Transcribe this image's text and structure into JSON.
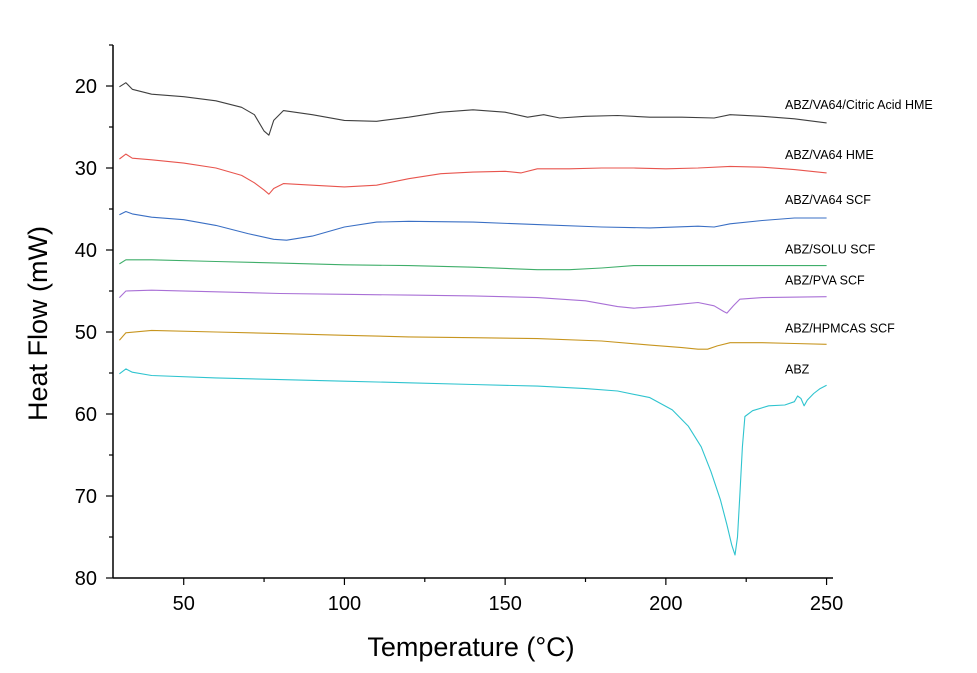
{
  "chart_data": {
    "type": "line",
    "title": "",
    "xlabel": "Temperature (°C)",
    "ylabel": "Heat Flow (mW)",
    "xlim": [
      28,
      252
    ],
    "ylim": [
      80,
      15
    ],
    "y_inverted": true,
    "x_ticks": [
      50,
      100,
      150,
      200,
      250
    ],
    "y_ticks": [
      20,
      30,
      40,
      50,
      60,
      70,
      80
    ],
    "grid": false,
    "legend": "inline labels at right of each curve",
    "series": [
      {
        "name": "ABZ/VA64/Citric Acid HME",
        "color": "#3f3f3f",
        "points": [
          [
            30,
            20.1
          ],
          [
            32,
            19.6
          ],
          [
            34,
            20.4
          ],
          [
            40,
            21.0
          ],
          [
            50,
            21.3
          ],
          [
            60,
            21.8
          ],
          [
            68,
            22.6
          ],
          [
            72,
            23.5
          ],
          [
            75,
            25.5
          ],
          [
            76.5,
            26.0
          ],
          [
            78,
            24.2
          ],
          [
            81,
            23.0
          ],
          [
            90,
            23.5
          ],
          [
            100,
            24.2
          ],
          [
            110,
            24.3
          ],
          [
            120,
            23.8
          ],
          [
            130,
            23.2
          ],
          [
            140,
            22.9
          ],
          [
            150,
            23.2
          ],
          [
            157,
            23.8
          ],
          [
            162,
            23.5
          ],
          [
            167,
            23.9
          ],
          [
            175,
            23.7
          ],
          [
            185,
            23.6
          ],
          [
            195,
            23.8
          ],
          [
            205,
            23.8
          ],
          [
            215,
            23.9
          ],
          [
            220,
            23.5
          ],
          [
            230,
            23.7
          ],
          [
            240,
            24.0
          ],
          [
            250,
            24.5
          ]
        ]
      },
      {
        "name": "ABZ/VA64 HME",
        "color": "#e8554e",
        "points": [
          [
            30,
            28.9
          ],
          [
            32,
            28.3
          ],
          [
            34,
            28.8
          ],
          [
            40,
            29.0
          ],
          [
            50,
            29.4
          ],
          [
            60,
            30.0
          ],
          [
            68,
            30.9
          ],
          [
            72,
            31.8
          ],
          [
            75,
            32.7
          ],
          [
            76.5,
            33.2
          ],
          [
            78,
            32.5
          ],
          [
            81,
            31.9
          ],
          [
            90,
            32.1
          ],
          [
            100,
            32.3
          ],
          [
            110,
            32.1
          ],
          [
            120,
            31.3
          ],
          [
            130,
            30.7
          ],
          [
            140,
            30.5
          ],
          [
            150,
            30.4
          ],
          [
            155,
            30.6
          ],
          [
            160,
            30.1
          ],
          [
            170,
            30.1
          ],
          [
            180,
            30.0
          ],
          [
            190,
            30.0
          ],
          [
            200,
            30.1
          ],
          [
            210,
            30.0
          ],
          [
            220,
            29.8
          ],
          [
            230,
            29.9
          ],
          [
            240,
            30.2
          ],
          [
            250,
            30.6
          ]
        ]
      },
      {
        "name": "ABZ/VA64 SCF",
        "color": "#3a6fc4",
        "points": [
          [
            30,
            35.7
          ],
          [
            32,
            35.3
          ],
          [
            34,
            35.6
          ],
          [
            40,
            36.0
          ],
          [
            50,
            36.3
          ],
          [
            60,
            37.0
          ],
          [
            70,
            38.0
          ],
          [
            78,
            38.7
          ],
          [
            82,
            38.8
          ],
          [
            90,
            38.3
          ],
          [
            100,
            37.2
          ],
          [
            110,
            36.6
          ],
          [
            120,
            36.5
          ],
          [
            140,
            36.6
          ],
          [
            160,
            36.9
          ],
          [
            180,
            37.2
          ],
          [
            195,
            37.3
          ],
          [
            210,
            37.1
          ],
          [
            215,
            37.2
          ],
          [
            220,
            36.8
          ],
          [
            230,
            36.4
          ],
          [
            240,
            36.1
          ],
          [
            250,
            36.1
          ]
        ]
      },
      {
        "name": "ABZ/SOLU SCF",
        "color": "#3fae6a",
        "points": [
          [
            30,
            41.7
          ],
          [
            32,
            41.2
          ],
          [
            40,
            41.2
          ],
          [
            60,
            41.4
          ],
          [
            80,
            41.6
          ],
          [
            100,
            41.8
          ],
          [
            120,
            41.9
          ],
          [
            140,
            42.1
          ],
          [
            160,
            42.4
          ],
          [
            170,
            42.4
          ],
          [
            180,
            42.2
          ],
          [
            190,
            41.9
          ],
          [
            200,
            41.9
          ],
          [
            220,
            41.9
          ],
          [
            240,
            41.9
          ],
          [
            250,
            41.9
          ]
        ]
      },
      {
        "name": "ABZ/PVA SCF",
        "color": "#a970d6",
        "points": [
          [
            30,
            45.8
          ],
          [
            32,
            45.0
          ],
          [
            40,
            44.9
          ],
          [
            60,
            45.1
          ],
          [
            80,
            45.3
          ],
          [
            100,
            45.4
          ],
          [
            120,
            45.5
          ],
          [
            140,
            45.6
          ],
          [
            160,
            45.8
          ],
          [
            175,
            46.2
          ],
          [
            185,
            46.9
          ],
          [
            190,
            47.1
          ],
          [
            197,
            46.9
          ],
          [
            205,
            46.6
          ],
          [
            210,
            46.4
          ],
          [
            215,
            46.8
          ],
          [
            218,
            47.5
          ],
          [
            219,
            47.7
          ],
          [
            221,
            46.8
          ],
          [
            223,
            46.0
          ],
          [
            230,
            45.8
          ],
          [
            250,
            45.7
          ]
        ]
      },
      {
        "name": "ABZ/HPMCAS SCF",
        "color": "#c7951f",
        "points": [
          [
            30,
            51.0
          ],
          [
            32,
            50.1
          ],
          [
            40,
            49.8
          ],
          [
            60,
            50.0
          ],
          [
            80,
            50.2
          ],
          [
            100,
            50.4
          ],
          [
            120,
            50.6
          ],
          [
            140,
            50.7
          ],
          [
            160,
            50.8
          ],
          [
            180,
            51.1
          ],
          [
            195,
            51.6
          ],
          [
            205,
            51.9
          ],
          [
            210,
            52.1
          ],
          [
            213,
            52.1
          ],
          [
            216,
            51.7
          ],
          [
            220,
            51.3
          ],
          [
            230,
            51.3
          ],
          [
            240,
            51.4
          ],
          [
            250,
            51.5
          ]
        ]
      },
      {
        "name": "ABZ",
        "color": "#2fc4cf",
        "points": [
          [
            30,
            55.1
          ],
          [
            32,
            54.5
          ],
          [
            34,
            54.9
          ],
          [
            40,
            55.3
          ],
          [
            60,
            55.6
          ],
          [
            80,
            55.8
          ],
          [
            100,
            56.0
          ],
          [
            120,
            56.2
          ],
          [
            140,
            56.4
          ],
          [
            160,
            56.6
          ],
          [
            175,
            56.9
          ],
          [
            185,
            57.2
          ],
          [
            195,
            58.0
          ],
          [
            202,
            59.5
          ],
          [
            207,
            61.5
          ],
          [
            211,
            64.0
          ],
          [
            214,
            67.0
          ],
          [
            217,
            70.5
          ],
          [
            219,
            73.5
          ],
          [
            220.5,
            76.0
          ],
          [
            221.5,
            77.2
          ],
          [
            222.3,
            75.0
          ],
          [
            223,
            70.0
          ],
          [
            223.8,
            64.0
          ],
          [
            224.6,
            60.3
          ],
          [
            227,
            59.6
          ],
          [
            232,
            59.0
          ],
          [
            237,
            58.9
          ],
          [
            240,
            58.5
          ],
          [
            241,
            57.8
          ],
          [
            242,
            58.1
          ],
          [
            243,
            59.0
          ],
          [
            244,
            58.3
          ],
          [
            246,
            57.5
          ],
          [
            248,
            56.9
          ],
          [
            250,
            56.5
          ]
        ]
      }
    ]
  }
}
